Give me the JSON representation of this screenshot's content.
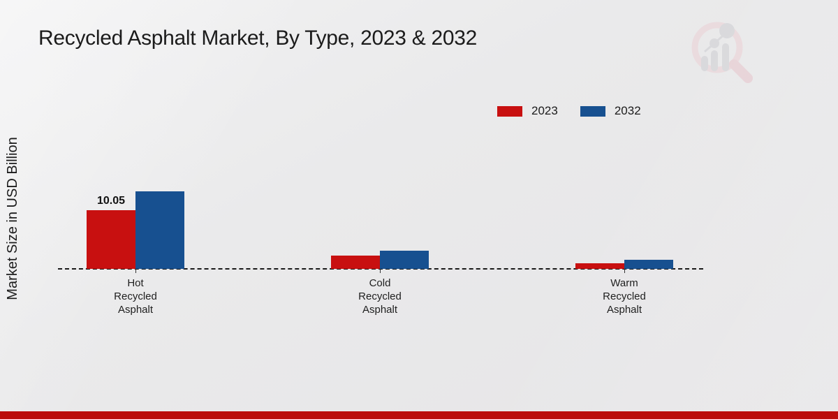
{
  "page": {
    "title": "Recycled Asphalt Market, By Type, 2023 & 2032",
    "watermark": "market-research-future-logo",
    "bottom_strip_color": "#bb0c0c"
  },
  "chart_data": {
    "type": "bar",
    "title": "Recycled Asphalt Market, By Type, 2023 & 2032",
    "xlabel": "",
    "ylabel": "Market Size in USD Billion",
    "categories": [
      "Hot\nRecycled\nAsphalt",
      "Cold\nRecycled\nAsphalt",
      "Warm\nRecycled\nAsphalt"
    ],
    "series": [
      {
        "name": "2023",
        "color": "#c81010",
        "values": [
          10.05,
          2.3,
          1.0
        ]
      },
      {
        "name": "2032",
        "color": "#175090",
        "values": [
          13.2,
          3.1,
          1.5
        ]
      }
    ],
    "annotations": [
      {
        "series": "2023",
        "category_index": 0,
        "text": "10.05"
      }
    ],
    "ylim": [
      0,
      14.5
    ],
    "grid": false,
    "legend_position": "top-right",
    "baseline_style": "dashed",
    "y_ticks_visible": false
  }
}
